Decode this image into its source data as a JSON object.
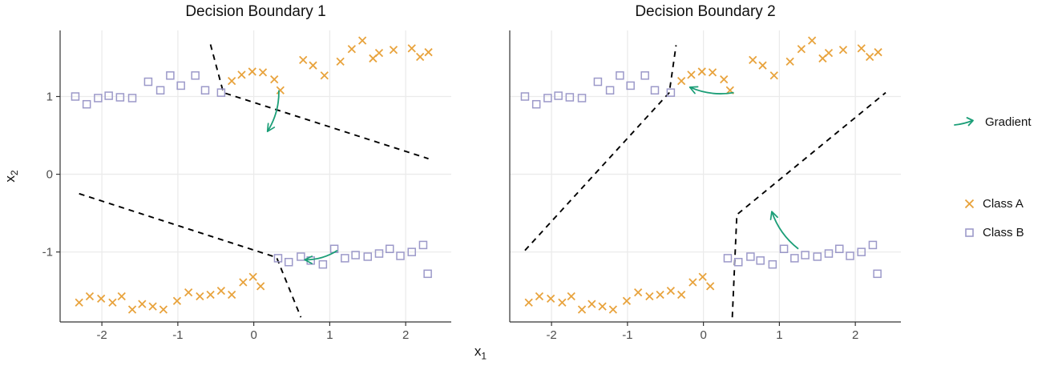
{
  "chart_data": {
    "type": "scatter",
    "figure": "two-panel faceted scatter with dashed decision boundaries and gradient arrows",
    "xlabel": {
      "base": "x",
      "sub": "1"
    },
    "ylabel": {
      "base": "x",
      "sub": "2"
    },
    "xlim": [
      -2.55,
      2.6
    ],
    "ylim": [
      -1.9,
      1.85
    ],
    "x_ticks": [
      -2,
      -1,
      0,
      1,
      2
    ],
    "y_ticks": [
      -1,
      0,
      1
    ],
    "grid": "major gridlines only, light gray on white",
    "legend_position": "right",
    "colors": {
      "class_a": "#E8A33D",
      "class_b": "#9C99C9",
      "gradient": "#1B9E77",
      "boundary": "#000000",
      "grid": "#EBEBEB",
      "axis": "#333333",
      "tick_text": "#4D4D4D"
    },
    "series": [
      {
        "name": "Class A",
        "marker": "x",
        "color_key": "class_a",
        "shared_across_panels": true,
        "points": [
          [
            -0.29,
            1.2
          ],
          [
            -0.16,
            1.28
          ],
          [
            -0.02,
            1.32
          ],
          [
            0.12,
            1.31
          ],
          [
            0.27,
            1.22
          ],
          [
            0.35,
            1.08
          ],
          [
            0.65,
            1.47
          ],
          [
            0.78,
            1.4
          ],
          [
            0.93,
            1.27
          ],
          [
            1.14,
            1.45
          ],
          [
            1.29,
            1.61
          ],
          [
            1.43,
            1.72
          ],
          [
            1.57,
            1.49
          ],
          [
            1.65,
            1.56
          ],
          [
            1.84,
            1.6
          ],
          [
            2.08,
            1.62
          ],
          [
            2.19,
            1.51
          ],
          [
            2.3,
            1.57
          ],
          [
            -2.3,
            -1.65
          ],
          [
            -2.16,
            -1.57
          ],
          [
            -2.01,
            -1.6
          ],
          [
            -1.86,
            -1.65
          ],
          [
            -1.74,
            -1.57
          ],
          [
            -1.6,
            -1.74
          ],
          [
            -1.47,
            -1.67
          ],
          [
            -1.33,
            -1.7
          ],
          [
            -1.19,
            -1.74
          ],
          [
            -1.01,
            -1.63
          ],
          [
            -0.86,
            -1.52
          ],
          [
            -0.71,
            -1.57
          ],
          [
            -0.57,
            -1.55
          ],
          [
            -0.43,
            -1.5
          ],
          [
            -0.29,
            -1.55
          ],
          [
            -0.14,
            -1.39
          ],
          [
            -0.01,
            -1.32
          ],
          [
            0.09,
            -1.44
          ]
        ]
      },
      {
        "name": "Class B",
        "marker": "square",
        "color_key": "class_b",
        "shared_across_panels": true,
        "points": [
          [
            -2.35,
            1.0
          ],
          [
            -2.2,
            0.9
          ],
          [
            -2.05,
            0.98
          ],
          [
            -1.91,
            1.01
          ],
          [
            -1.76,
            0.99
          ],
          [
            -1.6,
            0.98
          ],
          [
            -1.39,
            1.19
          ],
          [
            -1.23,
            1.08
          ],
          [
            -1.1,
            1.27
          ],
          [
            -0.96,
            1.14
          ],
          [
            -0.77,
            1.27
          ],
          [
            -0.64,
            1.08
          ],
          [
            -0.43,
            1.05
          ],
          [
            0.32,
            -1.08
          ],
          [
            0.46,
            -1.13
          ],
          [
            0.62,
            -1.06
          ],
          [
            0.75,
            -1.11
          ],
          [
            0.91,
            -1.16
          ],
          [
            1.06,
            -0.96
          ],
          [
            1.2,
            -1.08
          ],
          [
            1.34,
            -1.04
          ],
          [
            1.5,
            -1.06
          ],
          [
            1.65,
            -1.02
          ],
          [
            1.79,
            -0.96
          ],
          [
            1.93,
            -1.05
          ],
          [
            2.08,
            -1.0
          ],
          [
            2.23,
            -0.91
          ],
          [
            2.29,
            -1.28
          ]
        ]
      }
    ],
    "panels": [
      {
        "title": "Decision Boundary 1",
        "boundaries": [
          [
            [
              -0.57,
              1.67
            ],
            [
              -0.4,
              1.05
            ],
            [
              2.3,
              0.2
            ]
          ],
          [
            [
              -2.3,
              -0.25
            ],
            [
              0.3,
              -1.07
            ],
            [
              0.62,
              -1.84
            ]
          ]
        ],
        "arrows": [
          {
            "from": [
              0.33,
              1.08
            ],
            "to": [
              0.18,
              0.55
            ]
          },
          {
            "from": [
              1.1,
              -0.98
            ],
            "to": [
              0.67,
              -1.1
            ]
          }
        ]
      },
      {
        "title": "Decision Boundary 2",
        "boundaries": [
          [
            [
              -2.35,
              -0.98
            ],
            [
              -0.45,
              1.05
            ],
            [
              -0.36,
              1.66
            ]
          ],
          [
            [
              0.38,
              -1.84
            ],
            [
              0.44,
              -0.52
            ],
            [
              2.4,
              1.05
            ]
          ]
        ],
        "arrows": [
          {
            "from": [
              0.4,
              1.05
            ],
            "to": [
              -0.18,
              1.12
            ]
          },
          {
            "from": [
              1.25,
              -0.96
            ],
            "to": [
              0.9,
              -0.48
            ]
          }
        ]
      }
    ],
    "legend": [
      {
        "label": "Gradient",
        "symbol": "green-arrow"
      },
      {
        "label": "Class A",
        "symbol": "orange-x"
      },
      {
        "label": "Class B",
        "symbol": "purple-square"
      }
    ]
  }
}
